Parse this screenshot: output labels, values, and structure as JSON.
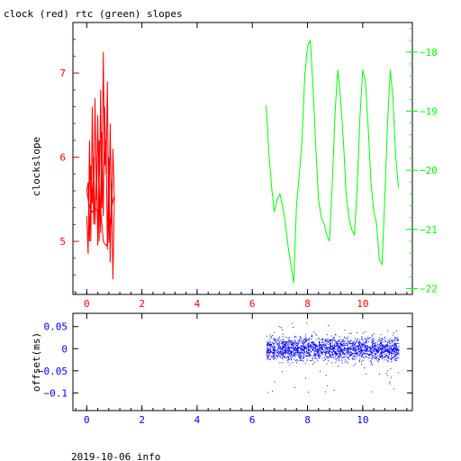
{
  "title": "clock (red) rtc (green) slopes",
  "footer": "2019-10-06 info",
  "colors": {
    "red": "#ff0000",
    "green": "#00ff00",
    "blue": "#0000ff",
    "axis": "#000000"
  },
  "chart_data": [
    {
      "type": "line",
      "ylabel": "clockslope",
      "xlim": [
        -0.5,
        11.8
      ],
      "left_axis": {
        "range": [
          4.37,
          7.6
        ],
        "ticks": [
          5,
          6,
          7
        ],
        "minor_step": 0.2,
        "color": "#ff0000"
      },
      "right_axis": {
        "range": [
          -22.1,
          -17.5
        ],
        "ticks": [
          -22,
          -21,
          -20,
          -19,
          -18
        ],
        "minor_step": 0.2,
        "color": "#00ff00"
      },
      "x_ticks": [
        0,
        2,
        4,
        6,
        8,
        10
      ],
      "series": [
        {
          "color": "#ff0000",
          "axis": "left",
          "x": [
            0.0,
            0.05,
            0.1,
            0.15,
            0.2,
            0.25,
            0.3,
            0.35,
            0.4,
            0.45,
            0.5,
            0.55,
            0.6,
            0.65,
            0.7,
            0.75,
            0.8,
            0.85,
            0.9,
            0.95,
            1.0,
            0.95,
            0.9,
            0.85,
            0.8,
            0.75,
            0.7,
            0.65,
            0.6,
            0.55,
            0.5,
            0.45,
            0.4,
            0.35,
            0.3,
            0.25,
            0.2,
            0.15,
            0.1,
            0.05,
            0.0,
            0.1,
            0.2,
            0.3,
            0.4,
            0.5,
            0.6,
            0.7,
            0.8,
            0.9,
            1.0
          ],
          "y": [
            5.3,
            4.85,
            6.2,
            5.0,
            6.6,
            5.2,
            6.7,
            5.5,
            6.5,
            5.0,
            6.8,
            5.4,
            7.25,
            5.9,
            6.2,
            4.9,
            6.0,
            4.75,
            5.7,
            4.55,
            5.5,
            6.1,
            5.2,
            6.4,
            5.0,
            6.9,
            5.8,
            6.6,
            5.3,
            6.3,
            5.1,
            6.2,
            4.95,
            5.9,
            5.2,
            6.0,
            5.45,
            5.9,
            5.0,
            5.7,
            5.6,
            5.4,
            5.35,
            5.4,
            5.35,
            5.4,
            5.0,
            4.95,
            5.0,
            5.4,
            5.55
          ]
        },
        {
          "color": "#00ff00",
          "axis": "right",
          "x": [
            6.5,
            6.6,
            6.7,
            6.8,
            6.9,
            7.0,
            7.1,
            7.2,
            7.3,
            7.4,
            7.5,
            7.6,
            7.7,
            7.8,
            7.9,
            8.0,
            8.1,
            8.2,
            8.3,
            8.4,
            8.5,
            8.6,
            8.7,
            8.8,
            8.9,
            9.0,
            9.1,
            9.2,
            9.3,
            9.4,
            9.5,
            9.6,
            9.7,
            9.8,
            9.9,
            10.0,
            10.1,
            10.2,
            10.3,
            10.4,
            10.5,
            10.6,
            10.7,
            10.8,
            10.9,
            11.0,
            11.1,
            11.2,
            11.3
          ],
          "y": [
            -18.9,
            -19.7,
            -20.3,
            -20.7,
            -20.5,
            -20.4,
            -20.6,
            -20.9,
            -21.3,
            -21.6,
            -21.9,
            -20.6,
            -20.1,
            -19.5,
            -18.4,
            -17.9,
            -17.8,
            -18.6,
            -19.6,
            -20.5,
            -20.8,
            -20.9,
            -21.1,
            -21.2,
            -20.2,
            -19.0,
            -18.3,
            -18.8,
            -19.5,
            -20.4,
            -20.8,
            -21.0,
            -21.1,
            -20.3,
            -19.1,
            -18.3,
            -18.5,
            -19.3,
            -20.2,
            -20.7,
            -20.9,
            -21.5,
            -21.6,
            -20.5,
            -19.2,
            -18.3,
            -18.8,
            -19.8,
            -20.3
          ]
        }
      ]
    },
    {
      "type": "scatter",
      "ylabel": "offset(ms)",
      "xlim": [
        -0.5,
        11.8
      ],
      "ylim": [
        -0.14,
        0.08
      ],
      "y_ticks": [
        0.05,
        0,
        -0.05,
        -0.1
      ],
      "y_tick_labels": [
        "0.05",
        "0",
        "−0.05",
        "−0.1"
      ],
      "x_ticks": [
        0,
        2,
        4,
        6,
        8,
        10
      ],
      "series": [
        {
          "color": "#0000ff",
          "x_range": [
            6.5,
            11.3
          ],
          "band": [
            -0.025,
            0.025
          ],
          "outlier_range": [
            -0.1,
            0.06
          ]
        }
      ]
    }
  ]
}
